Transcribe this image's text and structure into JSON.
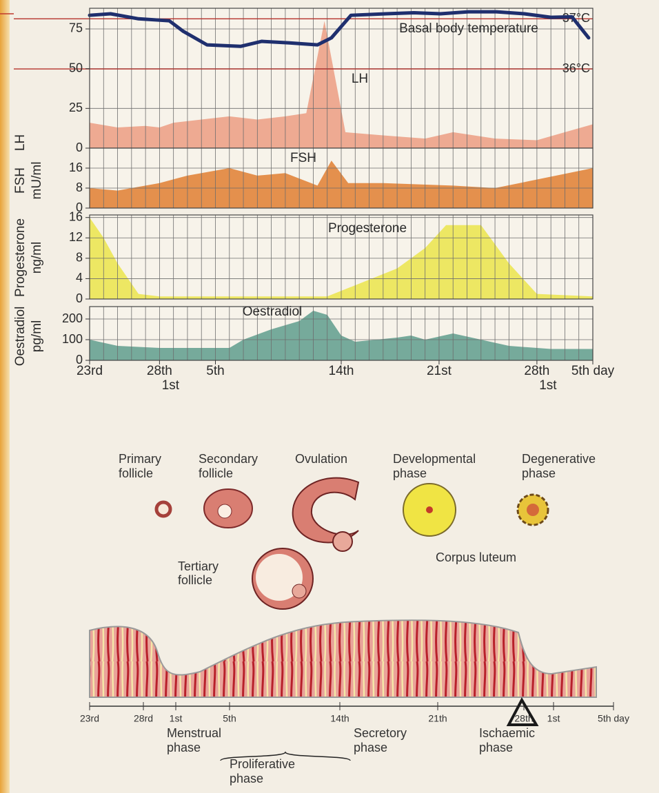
{
  "chart_data": [
    {
      "type": "area",
      "ylabel": [
        "LH"
      ],
      "xlim": [
        -5,
        31
      ],
      "grid_step_x": 1,
      "ylim": [
        0,
        88
      ],
      "yticks": [
        0,
        25,
        50,
        75
      ],
      "y2lim": [
        34.42,
        37.21
      ],
      "y2ticks": [
        {
          "value": 36,
          "label": "36°C"
        },
        {
          "value": 37,
          "label": "37°C"
        }
      ],
      "series": [
        {
          "name": "Basal body temperature",
          "type": "line",
          "axis": "y2",
          "color": "#1f2f6e",
          "x": [
            -5,
            -3.5,
            -1.5,
            0.7,
            1.7,
            3.4,
            5.8,
            7.3,
            9.3,
            11.3,
            12.3,
            13.7,
            16.2,
            18.2,
            20.1,
            22.1,
            24.1,
            26.1,
            28,
            29.5,
            30.7
          ],
          "values": [
            37.07,
            37.1,
            37.0,
            36.96,
            36.75,
            36.48,
            36.45,
            36.55,
            36.52,
            36.48,
            36.62,
            37.07,
            37.1,
            37.12,
            37.1,
            37.14,
            37.14,
            37.1,
            37.03,
            37.04,
            36.62
          ]
        },
        {
          "name": "LH",
          "type": "area",
          "color": "#eda58d",
          "x": [
            -5,
            -3,
            -1,
            0,
            1,
            3,
            5,
            7,
            9,
            10.5,
            11.8,
            13.3,
            16,
            19,
            21,
            24,
            27,
            29,
            31
          ],
          "values": [
            16,
            13,
            14,
            13,
            16,
            18,
            20,
            18,
            20,
            22,
            80,
            10,
            8,
            6,
            10,
            6,
            5,
            10,
            15
          ]
        }
      ]
    },
    {
      "type": "area",
      "ylabel": [
        "FSH",
        "mU/ml"
      ],
      "xlim": [
        -5,
        31
      ],
      "grid_step_x": 1,
      "ylim": [
        0,
        24
      ],
      "yticks": [
        0,
        8,
        16
      ],
      "series": [
        {
          "name": "FSH",
          "type": "area",
          "color": "#e38a45",
          "x": [
            -5,
            -3,
            0,
            2,
            5,
            7,
            9,
            11.3,
            12.3,
            13.5,
            16,
            21,
            24,
            31
          ],
          "values": [
            8,
            7,
            10,
            13,
            16,
            13,
            14,
            9,
            19,
            10,
            10,
            9,
            8,
            16
          ]
        }
      ]
    },
    {
      "type": "area",
      "ylabel": [
        "Progesterone",
        "ng/ml"
      ],
      "xlim": [
        -5,
        31
      ],
      "grid_step_x": 1,
      "ylim": [
        0,
        16.5
      ],
      "yticks": [
        0,
        4,
        8,
        12,
        16
      ],
      "series": [
        {
          "name": "Progesterone",
          "type": "area",
          "color": "#ece65c",
          "x": [
            -5,
            -4,
            -3,
            -1.5,
            0,
            12,
            17,
            19,
            20.5,
            23,
            25,
            27,
            31
          ],
          "values": [
            16,
            12,
            7,
            1,
            0.5,
            0.5,
            6,
            10,
            14.5,
            14.5,
            7,
            1,
            0.5
          ]
        }
      ]
    },
    {
      "type": "area",
      "ylabel": [
        "Oestradiol",
        "pg/ml"
      ],
      "xlim": [
        -5,
        31
      ],
      "grid_step_x": 1,
      "ylim": [
        0,
        260
      ],
      "yticks": [
        0,
        100,
        200
      ],
      "xticks": [
        {
          "value": -5,
          "label": "23rd"
        },
        {
          "value": 0,
          "label": "28th"
        },
        {
          "value": 4,
          "label": "5th"
        },
        {
          "value": 13,
          "label": "14th"
        },
        {
          "value": 20,
          "label": "21st"
        },
        {
          "value": 27,
          "label": "28th"
        },
        {
          "value": 31,
          "label": "5th day"
        }
      ],
      "xticks_sub": [
        {
          "value": 0,
          "label": "1st"
        },
        {
          "value": 27,
          "label": "1st"
        }
      ],
      "series": [
        {
          "name": "Oestradiol",
          "type": "area",
          "color": "#6fa597",
          "x": [
            -5,
            -3,
            0,
            3,
            5,
            6,
            8,
            10,
            11,
            12,
            13,
            14,
            17,
            18,
            19,
            21,
            23,
            25,
            28,
            31
          ],
          "values": [
            100,
            70,
            60,
            60,
            60,
            100,
            150,
            190,
            240,
            220,
            120,
            90,
            110,
            120,
            100,
            130,
            100,
            70,
            55,
            55
          ]
        }
      ]
    }
  ],
  "diagram": {
    "ovary": {
      "primary": [
        "Primary",
        "follicle"
      ],
      "secondary": [
        "Secondary",
        "follicle"
      ],
      "ovulation": "Ovulation",
      "developmental": [
        "Developmental",
        "phase"
      ],
      "degenerative": [
        "Degenerative",
        "phase"
      ],
      "corpus_luteum": "Corpus luteum",
      "tertiary": [
        "Tertiary",
        "follicle"
      ]
    },
    "endometrium": {
      "ticks": [
        "23rd",
        "28rd",
        "1st",
        "5th",
        "14th",
        "21th",
        "28th",
        "1st",
        "5th day"
      ],
      "menstrual": [
        "Menstrual",
        "phase"
      ],
      "proliferative": [
        "Proliferative",
        "phase"
      ],
      "secretory": [
        "Secretory",
        "phase"
      ],
      "ischaemic": [
        "Ischaemic",
        "phase"
      ]
    }
  }
}
